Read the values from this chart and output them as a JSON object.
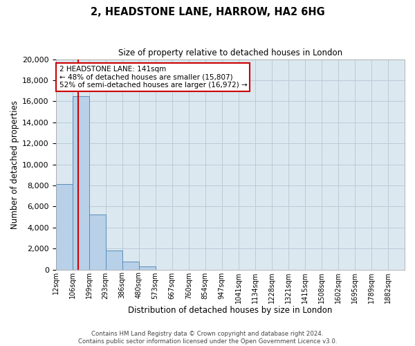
{
  "title": "2, HEADSTONE LANE, HARROW, HA2 6HG",
  "subtitle": "Size of property relative to detached houses in London",
  "xlabel": "Distribution of detached houses by size in London",
  "ylabel": "Number of detached properties",
  "bin_labels": [
    "12sqm",
    "106sqm",
    "199sqm",
    "293sqm",
    "386sqm",
    "480sqm",
    "573sqm",
    "667sqm",
    "760sqm",
    "854sqm",
    "947sqm",
    "1041sqm",
    "1134sqm",
    "1228sqm",
    "1321sqm",
    "1415sqm",
    "1508sqm",
    "1602sqm",
    "1695sqm",
    "1789sqm",
    "1882sqm"
  ],
  "bar_heights": [
    8100,
    16500,
    5250,
    1800,
    780,
    310,
    0,
    0,
    0,
    0,
    0,
    0,
    0,
    0,
    0,
    0,
    0,
    0,
    0,
    0,
    0
  ],
  "bar_color": "#b8d0e8",
  "bar_edge_color": "#5b8db8",
  "marker_bin_index": 1,
  "marker_color": "#cc0000",
  "ylim": [
    0,
    20000
  ],
  "yticks": [
    0,
    2000,
    4000,
    6000,
    8000,
    10000,
    12000,
    14000,
    16000,
    18000,
    20000
  ],
  "annotation_title": "2 HEADSTONE LANE: 141sqm",
  "annotation_line1": "← 48% of detached houses are smaller (15,807)",
  "annotation_line2": "52% of semi-detached houses are larger (16,972) →",
  "annotation_box_color": "#ffffff",
  "annotation_box_edge": "#cc0000",
  "footer_line1": "Contains HM Land Registry data © Crown copyright and database right 2024.",
  "footer_line2": "Contains public sector information licensed under the Open Government Licence v3.0.",
  "background_color": "#ffffff",
  "plot_bg_color": "#dce8f0",
  "grid_color": "#b8ccd8"
}
